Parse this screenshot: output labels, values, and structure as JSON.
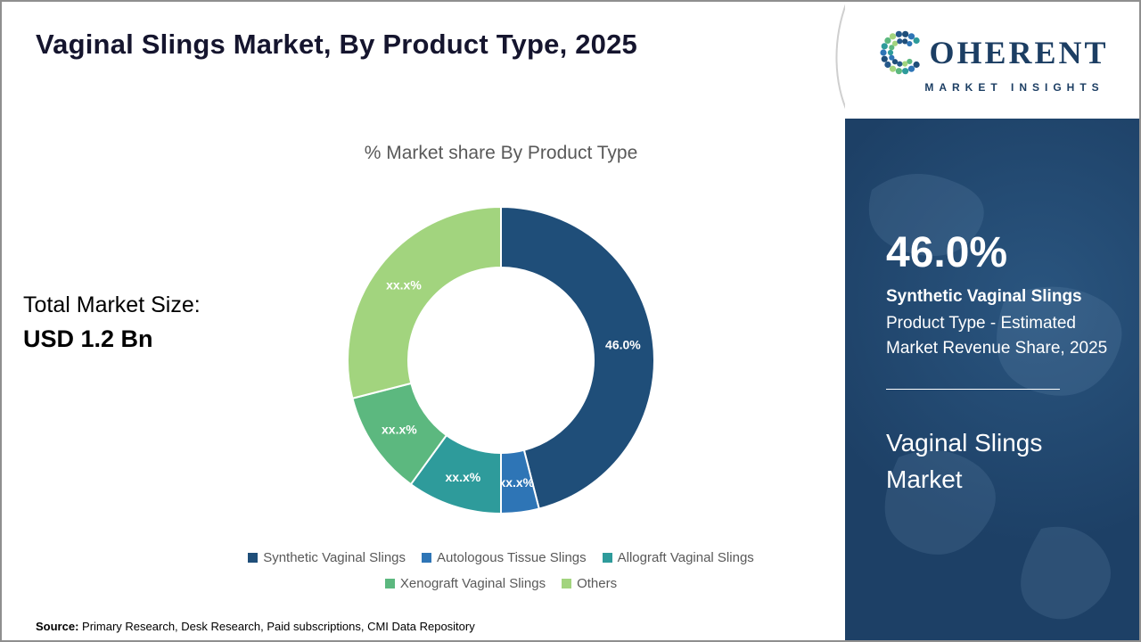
{
  "page": {
    "title": "Vaginal Slings Market, By Product Type, 2025",
    "source_label": "Source:",
    "source_text": " Primary Research, Desk Research, Paid subscriptions, CMI Data Repository"
  },
  "logo": {
    "brand": "COHERENT",
    "name_rest": "OHERENT",
    "tagline": "MARKET INSIGHTS"
  },
  "total_market": {
    "label": "Total Market Size:",
    "value": "USD 1.2 Bn"
  },
  "chart_data": {
    "type": "pie",
    "donut": true,
    "title": "% Market share By Product Type",
    "categories": [
      "Synthetic Vaginal Slings",
      "Autologous Tissue Slings",
      "Allograft Vaginal Slings",
      "Xenograft Vaginal Slings",
      "Others"
    ],
    "values": [
      46.0,
      4.0,
      10.0,
      11.0,
      29.0
    ],
    "labels": [
      "46.0%",
      "xx.x%",
      "xx.x%",
      "xx.x%",
      "xx.x%"
    ],
    "colors": [
      "#1f4e79",
      "#2e75b6",
      "#2e9b9b",
      "#5cb87f",
      "#a2d47e"
    ],
    "legend_position": "bottom",
    "start_angle_deg": 0,
    "direction": "clockwise"
  },
  "sidebar": {
    "stat_value": "46.0%",
    "stat_title": "Synthetic Vaginal Slings",
    "stat_desc": "Product Type - Estimated Market Revenue Share, 2025",
    "panel_title": "Vaginal Slings Market",
    "bg_color": "#1d4066"
  }
}
